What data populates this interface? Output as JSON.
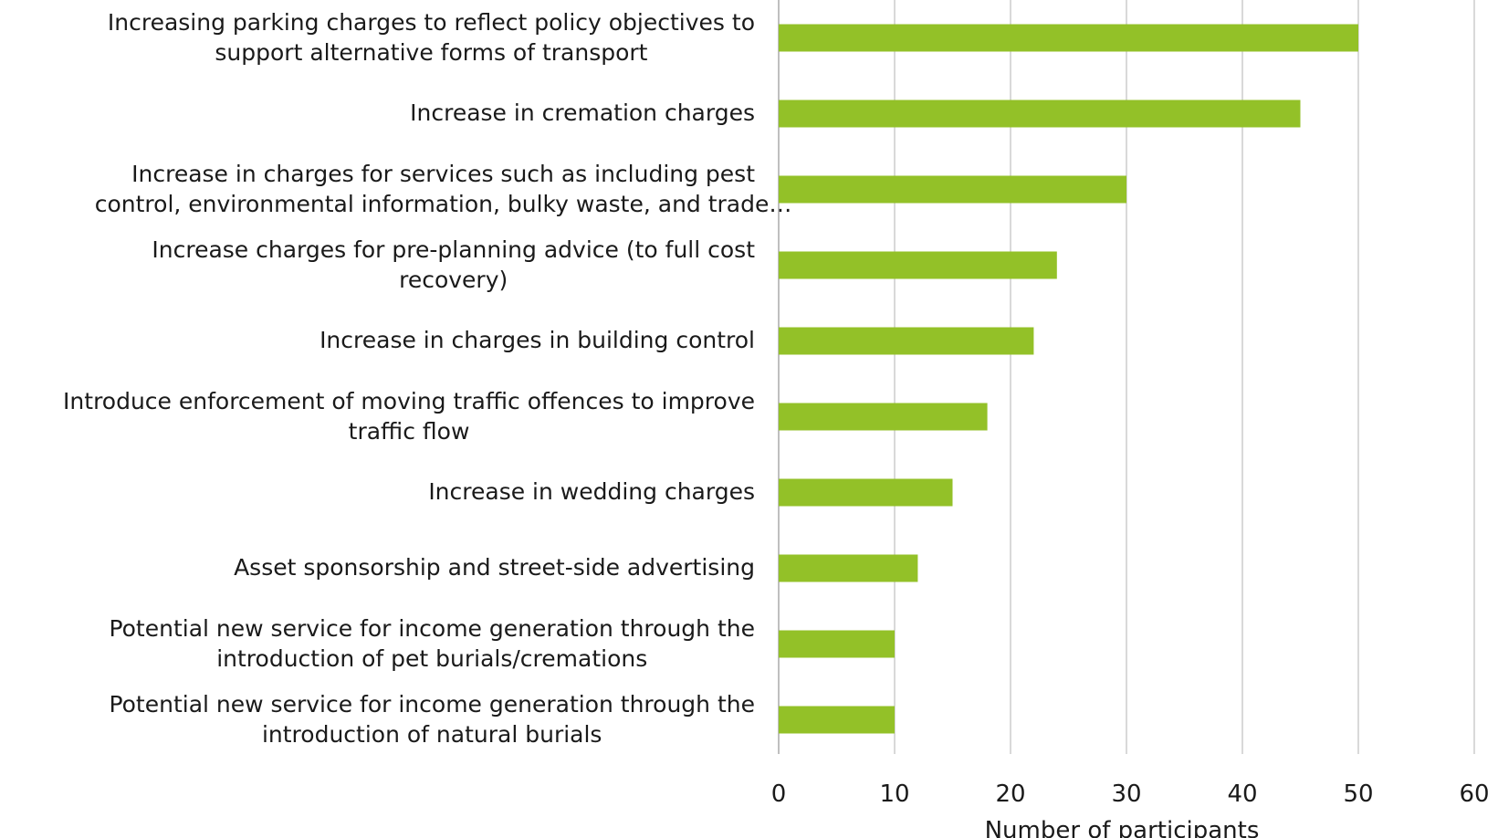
{
  "chart_data": {
    "type": "bar",
    "orientation": "horizontal",
    "categories": [
      [
        "Increasing parking charges to reflect policy objectives to",
        "support alternative forms of transport"
      ],
      [
        "Increase in cremation charges"
      ],
      [
        "Increase in charges for services such as including pest",
        "control, environmental information, bulky waste, and trade…"
      ],
      [
        "Increase charges for pre-planning advice (to full cost",
        "recovery)"
      ],
      [
        "Increase in charges in building control"
      ],
      [
        "Introduce enforcement of moving traffic offences to improve",
        "traffic flow"
      ],
      [
        "Increase in wedding charges"
      ],
      [
        "Asset sponsorship and street-side advertising"
      ],
      [
        "Potential new service for income generation through the",
        "introduction of pet burials/cremations"
      ],
      [
        "Potential new service for income generation through the",
        "introduction of natural burials"
      ]
    ],
    "values": [
      50,
      45,
      30,
      24,
      22,
      18,
      15,
      12,
      10,
      10
    ],
    "xlabel": "Number of participants",
    "ylabel": "",
    "xlim": [
      0,
      60
    ],
    "xticks": [
      "0",
      "10",
      "20",
      "30",
      "40",
      "50",
      "60"
    ],
    "bar_color": "#93c128",
    "gridline_color": "#d9d9d9",
    "grid": true,
    "legend": false
  }
}
